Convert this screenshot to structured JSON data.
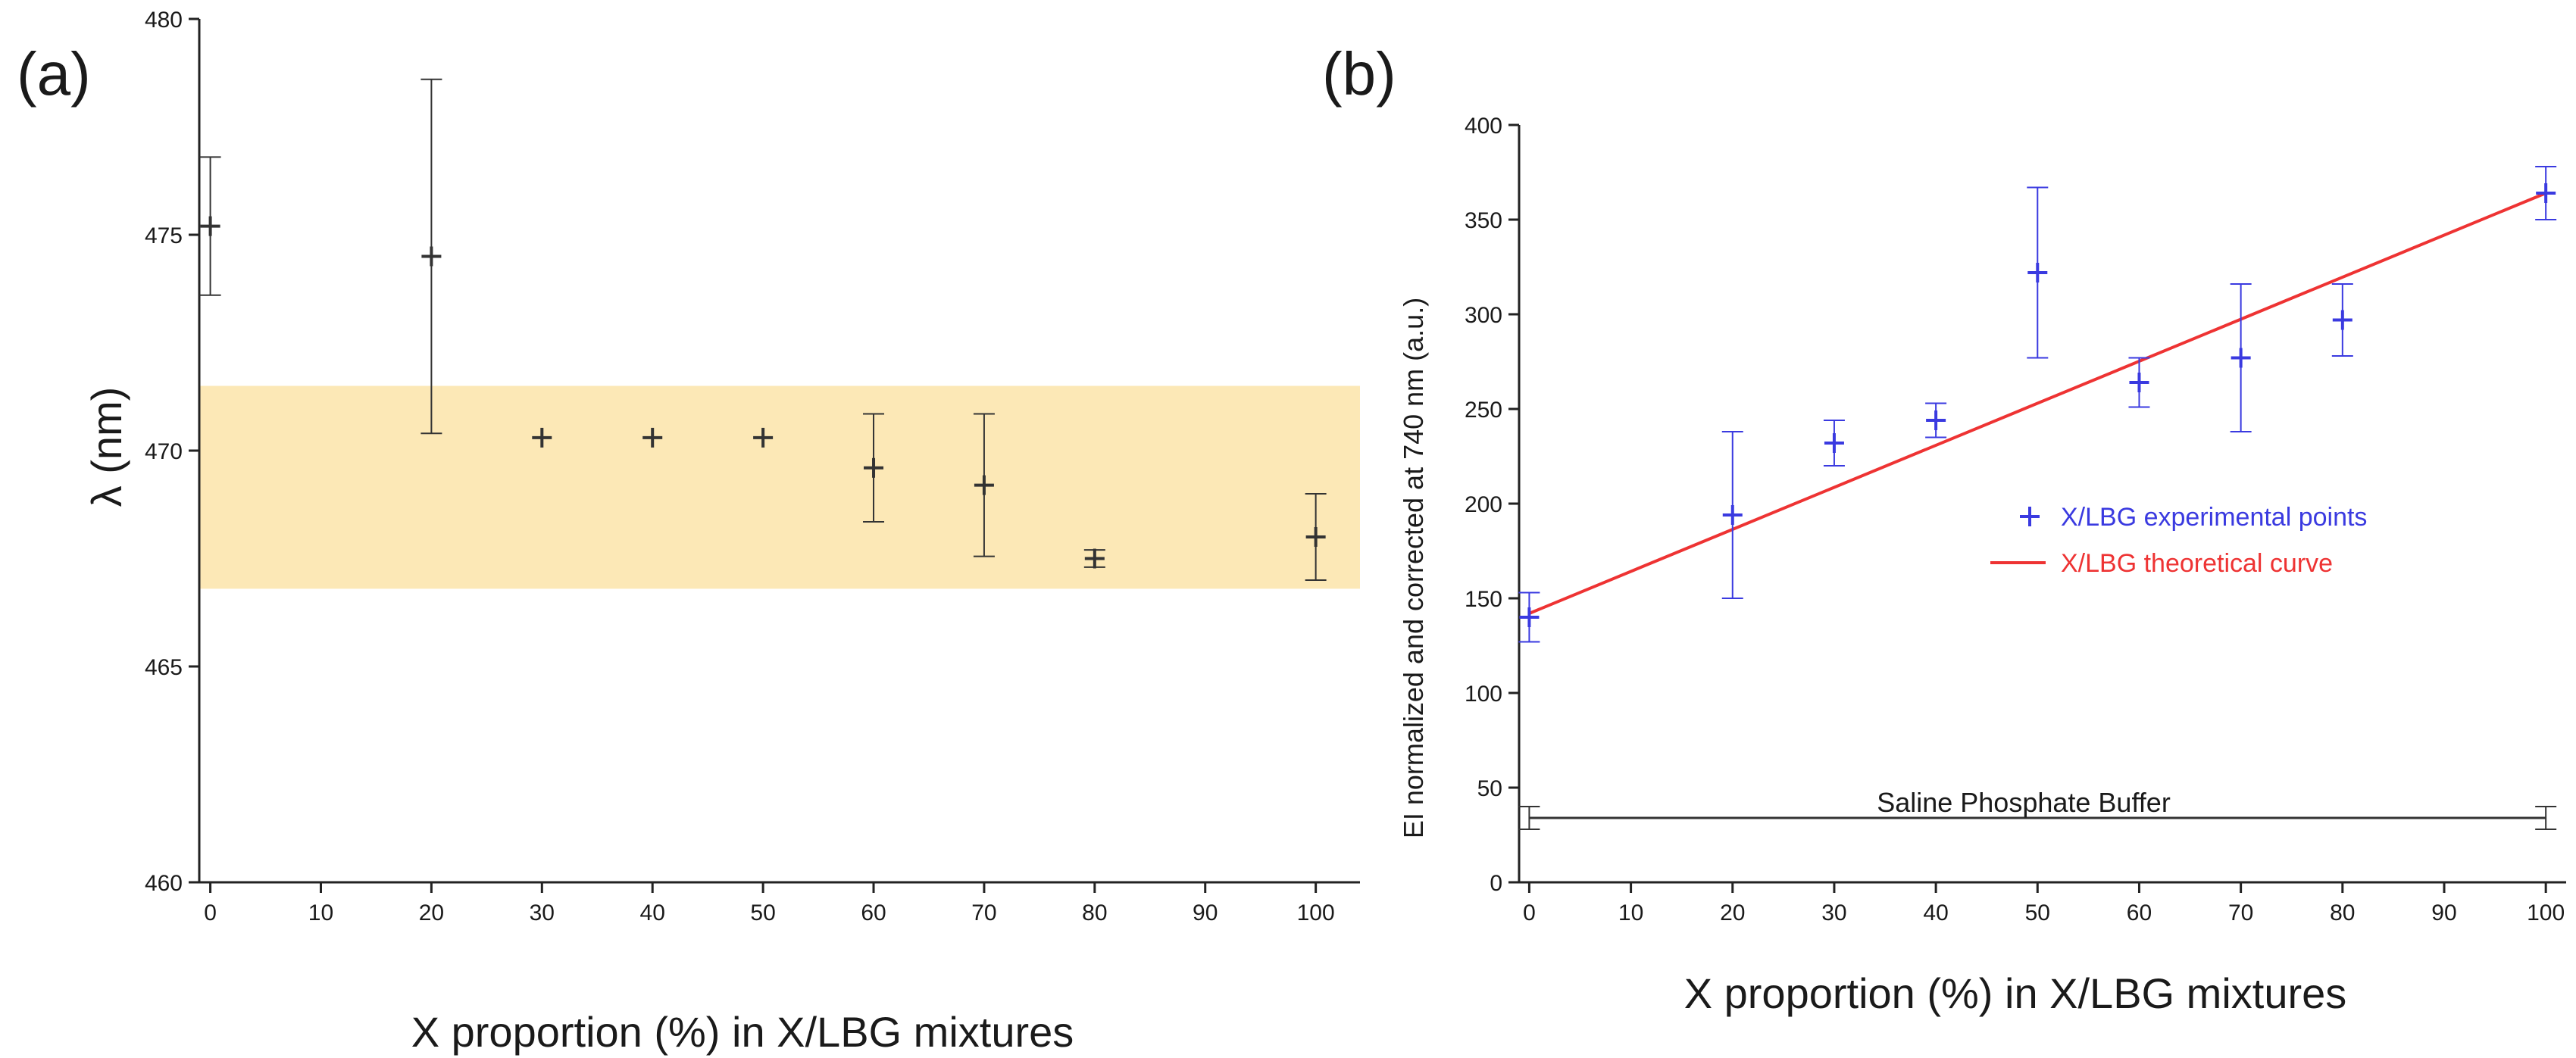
{
  "chart_data": [
    {
      "type": "scatter",
      "panel_label": "(a)",
      "title": "",
      "xlabel": "X proportion (%) in X/LBG mixtures",
      "ylabel": "λ (nm)",
      "xlim": [
        -1,
        104
      ],
      "ylim": [
        460,
        480
      ],
      "xticks": [
        0,
        10,
        20,
        30,
        40,
        50,
        60,
        70,
        80,
        90,
        100
      ],
      "yticks": [
        460,
        465,
        470,
        475,
        480
      ],
      "grid": false,
      "shaded_band": {
        "y_from": 466.8,
        "y_to": 471.5,
        "x_from": 0,
        "x_to": 104,
        "color": "#fce8b6"
      },
      "marker_color": "#333333",
      "series": [
        {
          "name": "X/LBG",
          "x": [
            0,
            20,
            30,
            40,
            50,
            60,
            70,
            80,
            100
          ],
          "y": [
            475.2,
            474.5,
            470.3,
            470.3,
            470.3,
            469.6,
            469.2,
            467.5,
            468.0
          ],
          "y_err": [
            1.6,
            4.1,
            0,
            0,
            0,
            1.25,
            1.65,
            0.2,
            1.0
          ]
        }
      ]
    },
    {
      "type": "scatter",
      "panel_label": "(b)",
      "title": "",
      "xlabel": "X proportion (%) in X/LBG mixtures",
      "ylabel": "EI normalized and corrected at 740 nm (a.u.)",
      "xlim": [
        -1,
        102
      ],
      "ylim": [
        0,
        400
      ],
      "xticks": [
        0,
        10,
        20,
        30,
        40,
        50,
        60,
        70,
        80,
        90,
        100
      ],
      "yticks": [
        0,
        50,
        100,
        150,
        200,
        250,
        300,
        350,
        400
      ],
      "grid": false,
      "legend_position": "center-right",
      "series": [
        {
          "name": "X/LBG experimental points",
          "color": "#3a3ae0",
          "x": [
            0,
            20,
            30,
            40,
            50,
            60,
            70,
            80,
            100
          ],
          "y": [
            140,
            194,
            232,
            244,
            322,
            264,
            277,
            297,
            364
          ],
          "y_err": [
            13,
            44,
            12,
            9,
            45,
            13,
            39,
            19,
            14
          ]
        },
        {
          "name": "X/LBG theoretical curve",
          "type": "line",
          "color": "#ee3333",
          "x": [
            0,
            100
          ],
          "y": [
            142,
            364
          ]
        },
        {
          "name": "Saline Phosphate Buffer",
          "type": "line",
          "color": "#333333",
          "x": [
            0,
            100
          ],
          "y": [
            34,
            34
          ],
          "y_err": [
            6,
            6
          ]
        }
      ],
      "annotation": "Saline Phosphate Buffer"
    }
  ]
}
